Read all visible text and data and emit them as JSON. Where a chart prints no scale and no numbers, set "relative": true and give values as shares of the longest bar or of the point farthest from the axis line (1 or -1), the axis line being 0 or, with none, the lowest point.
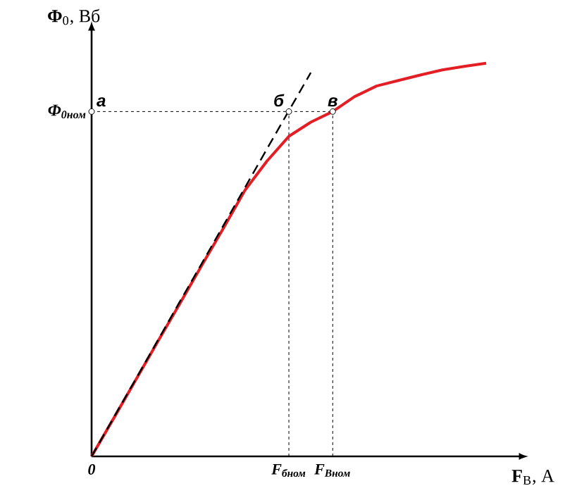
{
  "chart_data": {
    "type": "line",
    "relative": true,
    "xlabel": "**F**$_{В}$, А",
    "ylabel": "**Φ**$_{0}$, Вб",
    "categories": [
      "0",
      null,
      null,
      null,
      null,
      null,
      null,
      null,
      null,
      "F$_{бном}$",
      null,
      "F$_{Вном}$",
      null,
      null,
      null,
      null,
      null,
      null,
      null
    ],
    "series": [
      {
        "color": "#e31e24",
        "values": [
          0,
          0.096,
          0.193,
          0.29,
          0.386,
          0.483,
          0.579,
          0.677,
          0.751,
          0.814,
          0.85,
          0.877,
          0.915,
          0.942,
          0.956,
          0.97,
          0.983,
          0.992,
          1
        ]
      },
      {
        "color": "#000000",
        "line_style": "dashed",
        "values": [
          0,
          0.098,
          0.195,
          0.293,
          0.391,
          0.488,
          0.586,
          0.684,
          0.782,
          0.879,
          0.976,
          null,
          null,
          null,
          null,
          null,
          null,
          null,
          null
        ]
      }
    ],
    "ref_lines": [
      {
        "axis": "y",
        "value": 0.877,
        "label": "Φ$_{0ном}$",
        "line_style": "dotted"
      }
    ],
    "annotations": [
      {
        "text": "а",
        "x": "0",
        "y": 0.877
      },
      {
        "text": "б",
        "x": "F$_{бном}$",
        "y": 0.877
      },
      {
        "text": "в",
        "x": "F$_{Вном}$",
        "y": 0.877
      }
    ]
  }
}
